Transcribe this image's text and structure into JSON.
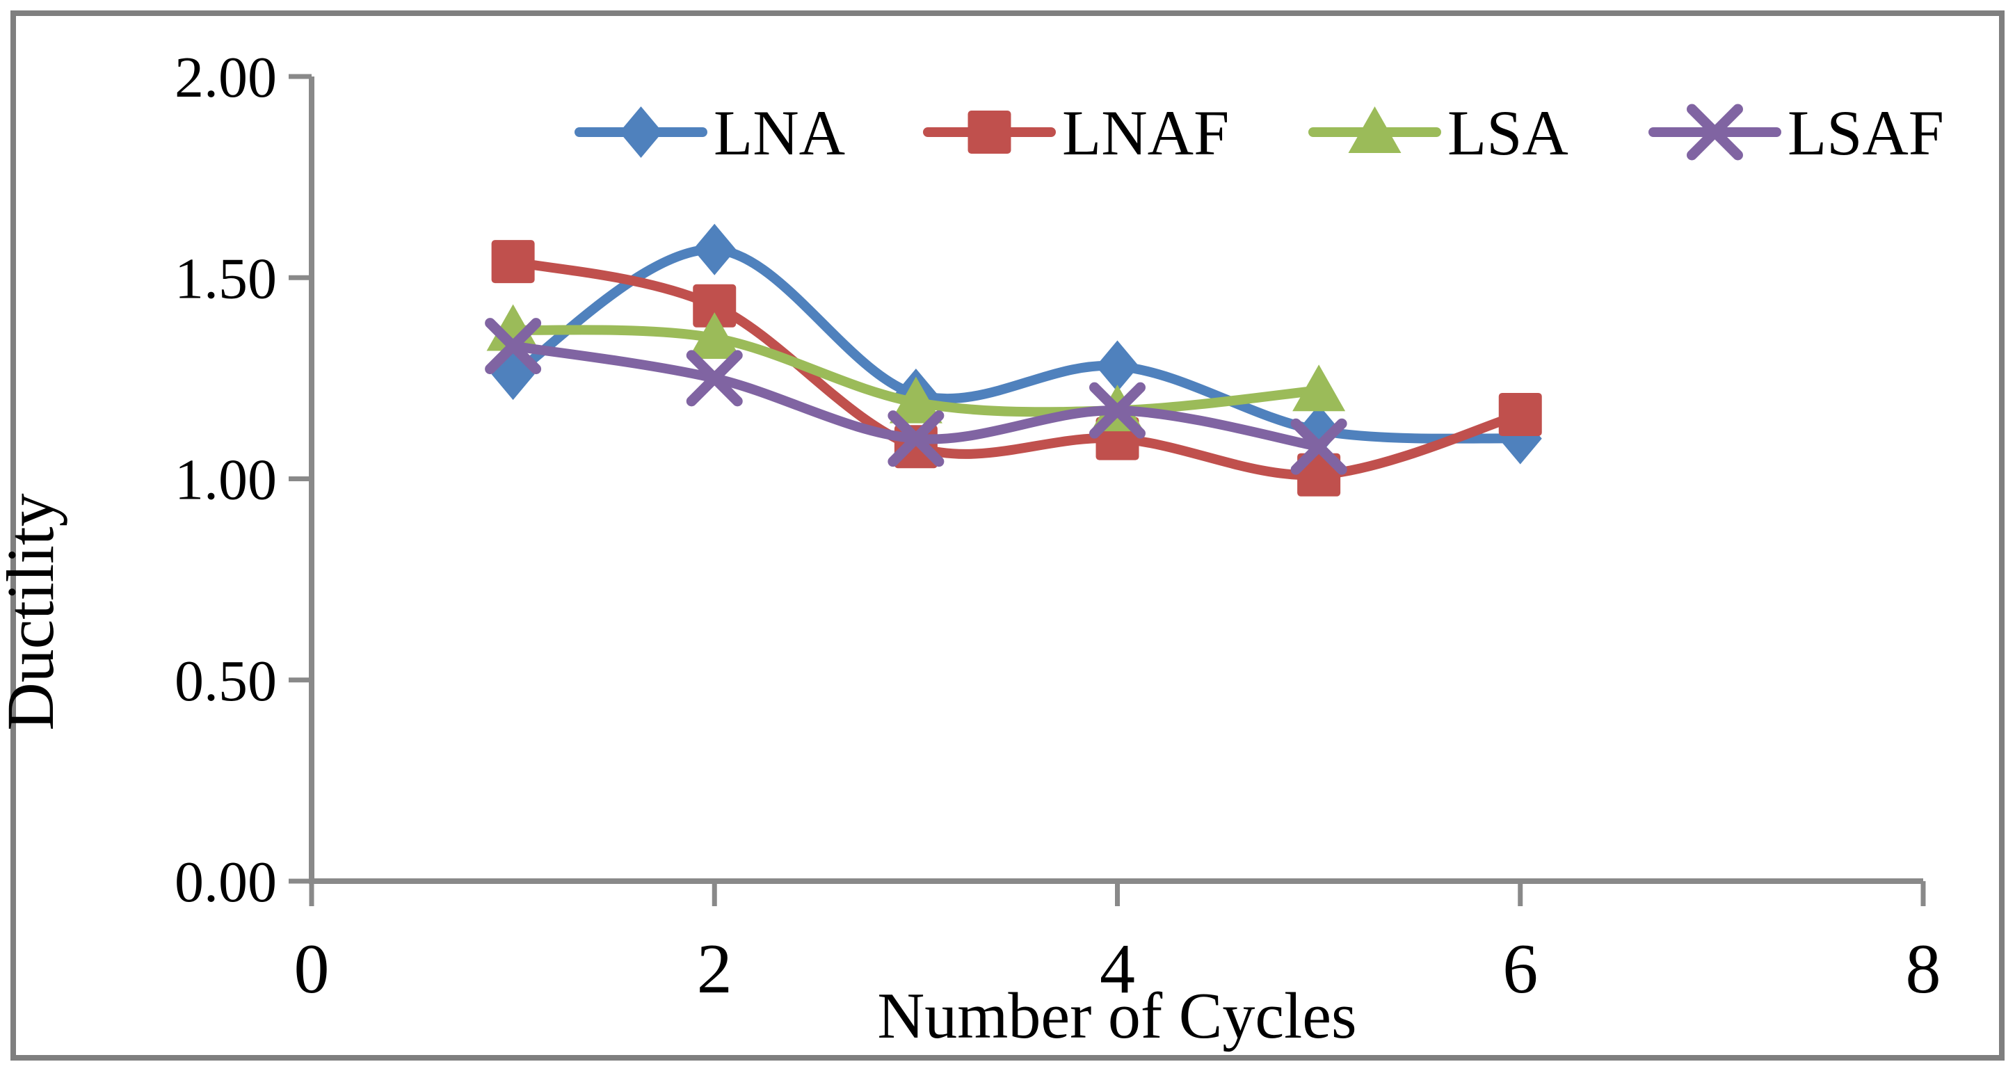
{
  "figure": {
    "background_color": "#FFFFFF",
    "border_color": "#7F7F7F",
    "axis_color": "#898989"
  },
  "chart_data": {
    "type": "line",
    "title": "",
    "xlabel": "Number of Cycles",
    "ylabel": "Ductility",
    "xlim": [
      0,
      8
    ],
    "ylim": [
      0.0,
      2.0
    ],
    "x_ticks": [
      0,
      2,
      4,
      6,
      8
    ],
    "x_tick_labels": [
      "0",
      "2",
      "4",
      "6",
      "8"
    ],
    "y_ticks": [
      0.0,
      0.5,
      1.0,
      1.5,
      2.0
    ],
    "y_tick_labels": [
      "0.00",
      "0.50",
      "1.00",
      "1.50",
      "2.00"
    ],
    "grid": false,
    "line_smoothing": true,
    "legend_position": "top-center",
    "series": [
      {
        "name": "LNA",
        "color": "#4F81BD",
        "marker": "diamond",
        "x": [
          1,
          2,
          3,
          4,
          5,
          6
        ],
        "values": [
          1.26,
          1.57,
          1.21,
          1.28,
          1.12,
          1.1
        ]
      },
      {
        "name": "LNAF",
        "color": "#C0504D",
        "marker": "square",
        "x": [
          1,
          2,
          3,
          4,
          5,
          6
        ],
        "values": [
          1.54,
          1.43,
          1.08,
          1.1,
          1.01,
          1.16
        ]
      },
      {
        "name": "LSA",
        "color": "#9BBB59",
        "marker": "triangle",
        "x": [
          1,
          2,
          3,
          4,
          5
        ],
        "values": [
          1.37,
          1.35,
          1.19,
          1.17,
          1.22
        ]
      },
      {
        "name": "LSAF",
        "color": "#8064A2",
        "marker": "x",
        "x": [
          1,
          2,
          3,
          4,
          5
        ],
        "values": [
          1.33,
          1.25,
          1.1,
          1.17,
          1.08
        ]
      }
    ]
  }
}
